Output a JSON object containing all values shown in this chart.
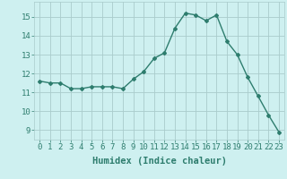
{
  "x": [
    0,
    1,
    2,
    3,
    4,
    5,
    6,
    7,
    8,
    9,
    10,
    11,
    12,
    13,
    14,
    15,
    16,
    17,
    18,
    19,
    20,
    21,
    22,
    23
  ],
  "y": [
    11.6,
    11.5,
    11.5,
    11.2,
    11.2,
    11.3,
    11.3,
    11.3,
    11.2,
    11.7,
    12.1,
    12.8,
    13.1,
    14.4,
    15.2,
    15.1,
    14.8,
    15.1,
    13.7,
    13.0,
    11.8,
    10.8,
    9.8,
    8.9
  ],
  "line_color": "#2e7d6e",
  "marker": "D",
  "marker_size": 2,
  "bg_color": "#cef0f0",
  "grid_color": "#aacccc",
  "xlabel": "Humidex (Indice chaleur)",
  "xlim": [
    -0.5,
    23.5
  ],
  "ylim": [
    8.5,
    15.8
  ],
  "yticks": [
    9,
    10,
    11,
    12,
    13,
    14,
    15
  ],
  "xtick_labels": [
    "0",
    "1",
    "2",
    "3",
    "4",
    "5",
    "6",
    "7",
    "8",
    "9",
    "10",
    "11",
    "12",
    "13",
    "14",
    "15",
    "16",
    "17",
    "18",
    "19",
    "20",
    "21",
    "22",
    "23"
  ],
  "xlabel_fontsize": 7.5,
  "tick_fontsize": 6.5,
  "line_width": 1.0
}
